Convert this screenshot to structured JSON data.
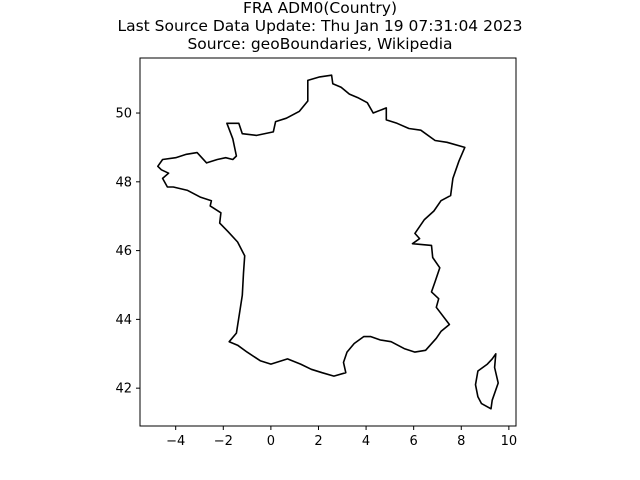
{
  "title_lines": [
    "FRA ADM0(Country)",
    "Last Source Data Update: Thu Jan 19 07:31:04 2023",
    "Source: geoBoundaries, Wikipedia"
  ],
  "chart_data": {
    "type": "map",
    "xlim": [
      -5.5,
      10.3
    ],
    "ylim": [
      40.9,
      51.6
    ],
    "x_ticks": [
      -4,
      -2,
      0,
      2,
      4,
      6,
      8,
      10
    ],
    "y_ticks": [
      42,
      44,
      46,
      48,
      50
    ],
    "x_tick_labels": [
      "−4",
      "−2",
      "0",
      "2",
      "4",
      "6",
      "8",
      "10"
    ],
    "y_tick_labels": [
      "42",
      "44",
      "46",
      "48",
      "50"
    ],
    "line_color": "#000000",
    "grid": false,
    "shapes": [
      {
        "name": "mainland",
        "coords": [
          [
            1.55,
            50.95
          ],
          [
            2.05,
            51.05
          ],
          [
            2.55,
            51.1
          ],
          [
            2.6,
            50.85
          ],
          [
            2.95,
            50.75
          ],
          [
            3.3,
            50.55
          ],
          [
            3.65,
            50.45
          ],
          [
            4.05,
            50.3
          ],
          [
            4.3,
            50.0
          ],
          [
            4.85,
            50.15
          ],
          [
            4.85,
            49.8
          ],
          [
            5.3,
            49.7
          ],
          [
            5.8,
            49.55
          ],
          [
            6.3,
            49.5
          ],
          [
            6.9,
            49.2
          ],
          [
            7.4,
            49.15
          ],
          [
            8.15,
            49.0
          ],
          [
            7.9,
            48.6
          ],
          [
            7.65,
            48.1
          ],
          [
            7.55,
            47.6
          ],
          [
            7.15,
            47.45
          ],
          [
            6.85,
            47.15
          ],
          [
            6.45,
            46.9
          ],
          [
            6.05,
            46.5
          ],
          [
            6.25,
            46.35
          ],
          [
            5.95,
            46.2
          ],
          [
            6.75,
            46.15
          ],
          [
            6.8,
            45.8
          ],
          [
            7.1,
            45.5
          ],
          [
            6.9,
            45.1
          ],
          [
            6.75,
            44.8
          ],
          [
            7.05,
            44.6
          ],
          [
            6.95,
            44.35
          ],
          [
            7.5,
            43.85
          ],
          [
            7.15,
            43.65
          ],
          [
            6.95,
            43.45
          ],
          [
            6.5,
            43.1
          ],
          [
            6.05,
            43.05
          ],
          [
            5.6,
            43.15
          ],
          [
            5.05,
            43.35
          ],
          [
            4.6,
            43.4
          ],
          [
            4.2,
            43.5
          ],
          [
            3.9,
            43.5
          ],
          [
            3.5,
            43.3
          ],
          [
            3.2,
            43.05
          ],
          [
            3.05,
            42.75
          ],
          [
            3.15,
            42.45
          ],
          [
            2.65,
            42.35
          ],
          [
            2.15,
            42.45
          ],
          [
            1.7,
            42.55
          ],
          [
            1.25,
            42.7
          ],
          [
            0.7,
            42.85
          ],
          [
            0.0,
            42.7
          ],
          [
            -0.45,
            42.8
          ],
          [
            -1.0,
            43.05
          ],
          [
            -1.4,
            43.25
          ],
          [
            -1.75,
            43.35
          ],
          [
            -1.45,
            43.6
          ],
          [
            -1.3,
            44.25
          ],
          [
            -1.2,
            44.7
          ],
          [
            -1.15,
            45.35
          ],
          [
            -1.1,
            45.85
          ],
          [
            -1.4,
            46.25
          ],
          [
            -1.8,
            46.55
          ],
          [
            -2.15,
            46.8
          ],
          [
            -2.1,
            47.1
          ],
          [
            -2.55,
            47.3
          ],
          [
            -2.5,
            47.45
          ],
          [
            -2.95,
            47.55
          ],
          [
            -3.5,
            47.75
          ],
          [
            -4.1,
            47.85
          ],
          [
            -4.35,
            47.85
          ],
          [
            -4.55,
            48.1
          ],
          [
            -4.3,
            48.25
          ],
          [
            -4.6,
            48.35
          ],
          [
            -4.75,
            48.45
          ],
          [
            -4.55,
            48.65
          ],
          [
            -4.0,
            48.7
          ],
          [
            -3.55,
            48.8
          ],
          [
            -3.1,
            48.85
          ],
          [
            -2.7,
            48.55
          ],
          [
            -2.25,
            48.65
          ],
          [
            -1.9,
            48.7
          ],
          [
            -1.6,
            48.65
          ],
          [
            -1.45,
            48.75
          ],
          [
            -1.6,
            49.25
          ],
          [
            -1.85,
            49.7
          ],
          [
            -1.35,
            49.7
          ],
          [
            -1.2,
            49.4
          ],
          [
            -0.6,
            49.35
          ],
          [
            0.1,
            49.45
          ],
          [
            0.2,
            49.75
          ],
          [
            0.65,
            49.85
          ],
          [
            1.2,
            50.05
          ],
          [
            1.55,
            50.35
          ],
          [
            1.55,
            50.95
          ]
        ]
      },
      {
        "name": "corsica",
        "coords": [
          [
            9.45,
            43.0
          ],
          [
            9.4,
            42.6
          ],
          [
            9.55,
            42.15
          ],
          [
            9.3,
            41.65
          ],
          [
            9.25,
            41.4
          ],
          [
            8.85,
            41.55
          ],
          [
            8.7,
            41.75
          ],
          [
            8.6,
            42.1
          ],
          [
            8.7,
            42.5
          ],
          [
            9.1,
            42.7
          ],
          [
            9.3,
            42.85
          ],
          [
            9.45,
            43.0
          ]
        ]
      }
    ]
  }
}
